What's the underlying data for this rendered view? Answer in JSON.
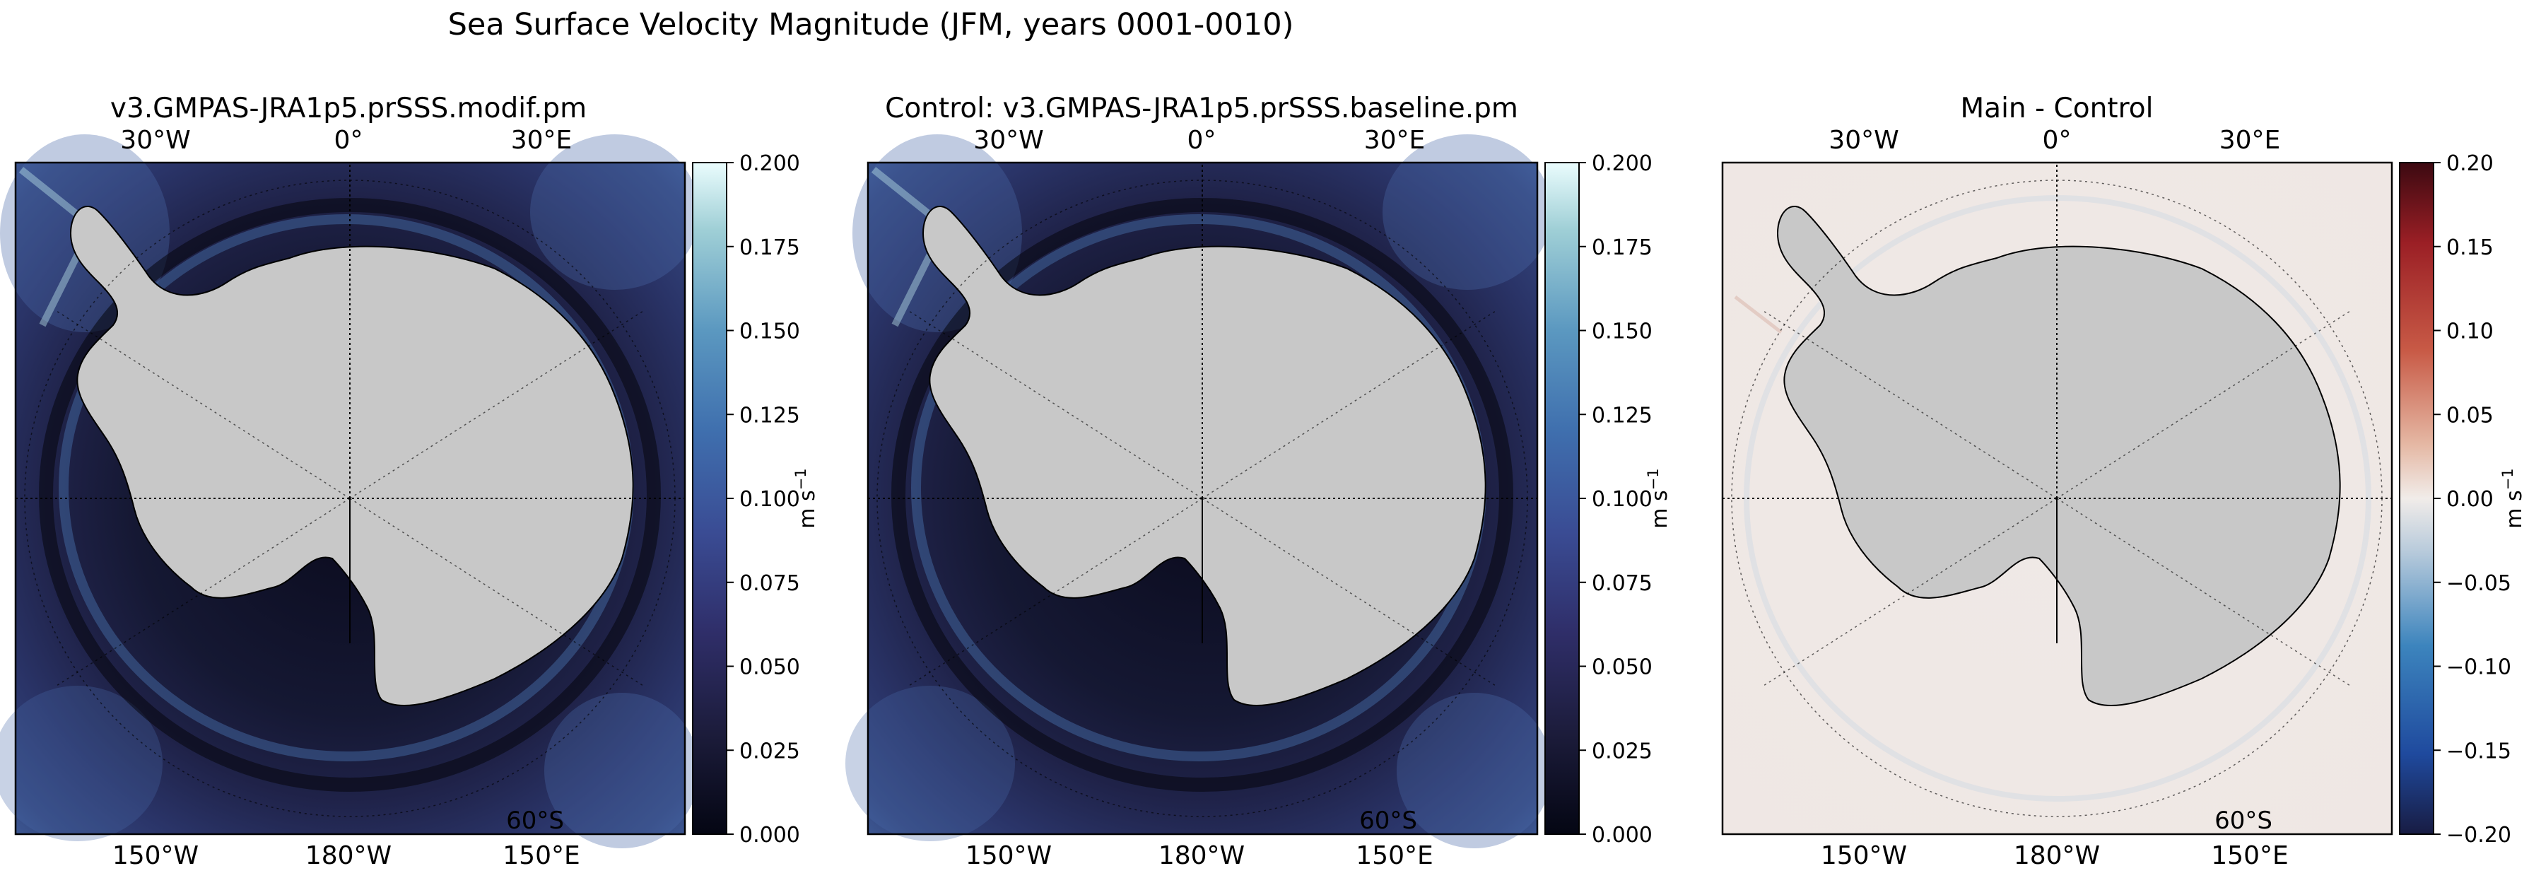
{
  "suptitle": "Sea Surface Velocity Magnitude (JFM, years 0001-0010)",
  "chart_data": [
    {
      "type": "heatmap",
      "title": "v3.GMPAS-JRA1p5.prSSS.modif.pm",
      "projection": "south-polar-stereographic",
      "colormap": "ice",
      "colorbar": {
        "label": "m s",
        "label_exp": "−1",
        "vmin": 0.0,
        "vmax": 0.2,
        "ticks": [
          "0.000",
          "0.025",
          "0.050",
          "0.075",
          "0.100",
          "0.125",
          "0.150",
          "0.175",
          "0.200"
        ]
      },
      "lon_labels_top": [
        "30°W",
        "0°",
        "30°E"
      ],
      "lon_labels_bottom": [
        "150°W",
        "180°W",
        "150°E"
      ],
      "lat_label": "60°S"
    },
    {
      "type": "heatmap",
      "title": "Control: v3.GMPAS-JRA1p5.prSSS.baseline.pm",
      "projection": "south-polar-stereographic",
      "colormap": "ice",
      "colorbar": {
        "label": "m s",
        "label_exp": "−1",
        "vmin": 0.0,
        "vmax": 0.2,
        "ticks": [
          "0.000",
          "0.025",
          "0.050",
          "0.075",
          "0.100",
          "0.125",
          "0.150",
          "0.175",
          "0.200"
        ]
      },
      "lon_labels_top": [
        "30°W",
        "0°",
        "30°E"
      ],
      "lon_labels_bottom": [
        "150°W",
        "180°W",
        "150°E"
      ],
      "lat_label": "60°S"
    },
    {
      "type": "heatmap",
      "title": "Main - Control",
      "projection": "south-polar-stereographic",
      "colormap": "balance",
      "colorbar": {
        "label": "m s",
        "label_exp": "−1",
        "vmin": -0.2,
        "vmax": 0.2,
        "ticks": [
          "−0.20",
          "−0.15",
          "−0.10",
          "−0.05",
          "0.00",
          "0.05",
          "0.10",
          "0.15",
          "0.20"
        ]
      },
      "lon_labels_top": [
        "30°W",
        "0°",
        "30°E"
      ],
      "lon_labels_bottom": [
        "150°W",
        "180°W",
        "150°E"
      ],
      "lat_label": "60°S"
    }
  ],
  "colors": {
    "land": "#c8c8c8",
    "ice_low": "#050510",
    "ice_mid": "#3a4d91",
    "ice_high": "#e8f6f5",
    "diff_low": "#191e4a",
    "diff_mid": "#f1ebe7",
    "diff_high": "#3b0a0f"
  }
}
